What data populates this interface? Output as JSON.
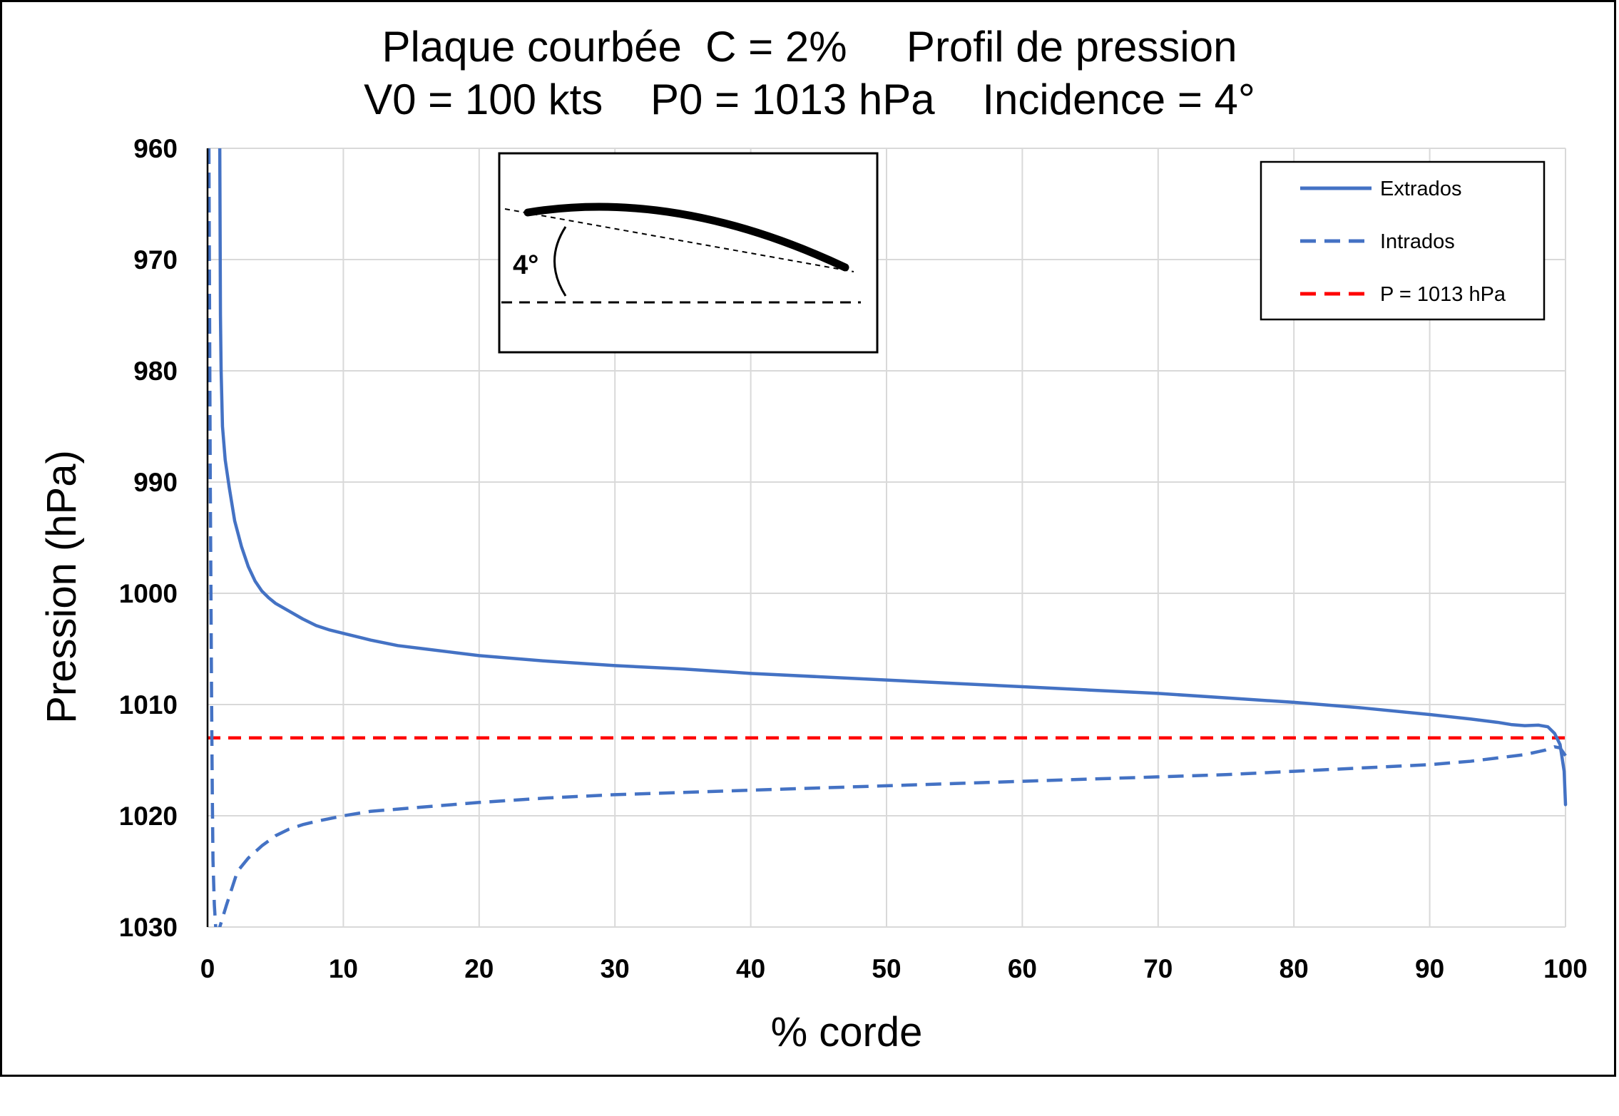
{
  "chart_data": {
    "type": "line",
    "title_line1": "Plaque courbée  C = 2%     Profil de pression",
    "title_line2": "V0 = 100 kts    P0 = 1013 hPa    Incidence = 4°",
    "xlabel": "% corde",
    "ylabel": "Pression (hPa)",
    "xlim": [
      0,
      100
    ],
    "ylim": [
      960,
      1030
    ],
    "y_inverted": true,
    "grid": true,
    "legend_position": "top-right",
    "x_ticks": [
      0,
      10,
      20,
      30,
      40,
      50,
      60,
      70,
      80,
      90,
      100
    ],
    "y_ticks": [
      960,
      970,
      980,
      990,
      1000,
      1010,
      1020,
      1030
    ],
    "series": [
      {
        "name": "Extrados",
        "color": "#4472C4",
        "style": "solid",
        "x": [
          0.9,
          0.95,
          1.0,
          1.1,
          1.3,
          1.6,
          2.0,
          2.5,
          3.0,
          3.5,
          4.0,
          4.5,
          5.0,
          6.0,
          7.0,
          8.0,
          9.0,
          10,
          12,
          14,
          16,
          18,
          20,
          25,
          30,
          35,
          40,
          45,
          50,
          55,
          60,
          65,
          70,
          75,
          80,
          85,
          90,
          93,
          95,
          96,
          97,
          98,
          98.7,
          99.2,
          99.6,
          99.9,
          100
        ],
        "y": [
          960,
          975,
          980,
          985,
          988,
          990.5,
          993.5,
          995.8,
          997.6,
          998.9,
          999.8,
          1000.4,
          1000.9,
          1001.6,
          1002.3,
          1002.9,
          1003.3,
          1003.6,
          1004.2,
          1004.7,
          1005.0,
          1005.3,
          1005.6,
          1006.1,
          1006.5,
          1006.8,
          1007.2,
          1007.5,
          1007.8,
          1008.1,
          1008.4,
          1008.7,
          1009.0,
          1009.4,
          1009.8,
          1010.3,
          1010.9,
          1011.3,
          1011.6,
          1011.8,
          1011.9,
          1011.85,
          1012.0,
          1012.6,
          1013.6,
          1016.0,
          1019.0
        ]
      },
      {
        "name": "Intrados",
        "color": "#4472C4",
        "style": "dashed",
        "x": [
          0.1,
          0.15,
          0.2,
          0.25,
          0.3,
          0.35,
          0.4,
          0.5,
          0.6,
          0.75,
          0.9,
          1.1,
          1.4,
          1.8,
          2.2,
          3.0,
          4.0,
          5.0,
          6.0,
          7.0,
          8.0,
          10,
          12,
          15,
          20,
          25,
          30,
          35,
          40,
          45,
          50,
          55,
          60,
          65,
          70,
          75,
          80,
          85,
          90,
          93,
          95,
          97,
          98.5,
          99.2,
          99.6,
          100
        ],
        "y": [
          960,
          975,
          990,
          1000,
          1010,
          1018,
          1024,
          1028,
          1030,
          1030.3,
          1030,
          1029.2,
          1028.0,
          1026.5,
          1025.0,
          1023.8,
          1022.7,
          1021.8,
          1021.2,
          1020.8,
          1020.5,
          1020.0,
          1019.6,
          1019.3,
          1018.8,
          1018.4,
          1018.1,
          1017.9,
          1017.7,
          1017.5,
          1017.3,
          1017.1,
          1016.9,
          1016.7,
          1016.5,
          1016.3,
          1016.0,
          1015.7,
          1015.4,
          1015.1,
          1014.8,
          1014.5,
          1014.1,
          1013.8,
          1013.9,
          1014.6
        ]
      },
      {
        "name": "P = 1013 hPa",
        "color": "#FF0000",
        "style": "dashed",
        "x": [
          0,
          100
        ],
        "y": [
          1013,
          1013
        ]
      }
    ],
    "inset": {
      "angle_label": "4°"
    }
  }
}
